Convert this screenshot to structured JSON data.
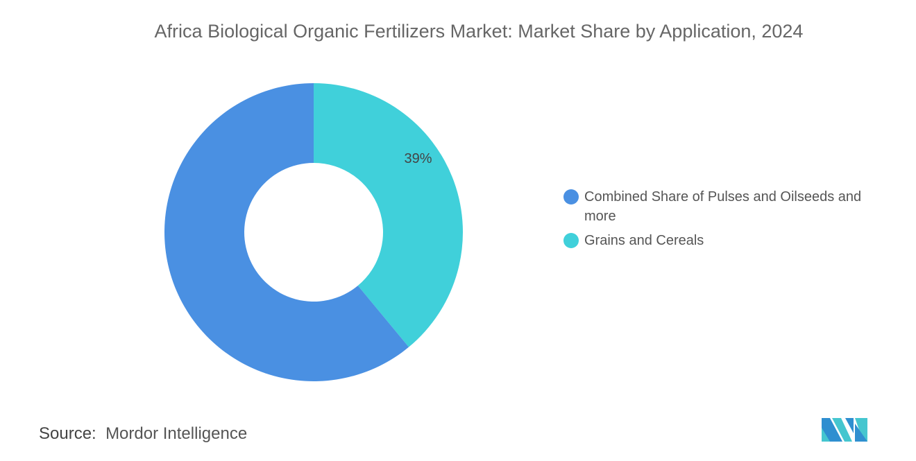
{
  "title": "Africa Biological Organic Fertilizers Market: Market Share by Application, 2024",
  "chart_data": {
    "type": "pie",
    "title": "Africa Biological Organic Fertilizers Market: Market Share by Application, 2024",
    "donut": true,
    "categories": [
      "Combined Share of Pulses and Oilseeds and more",
      "Grains and Cereals"
    ],
    "values": [
      61,
      39
    ],
    "data_labels": [
      "",
      "39%"
    ],
    "colors": [
      "#4a90e2",
      "#40d0da"
    ],
    "legend_position": "right"
  },
  "source": {
    "label": "Source:",
    "value": "Mordor Intelligence"
  },
  "logo": "Mordor Intelligence logo"
}
